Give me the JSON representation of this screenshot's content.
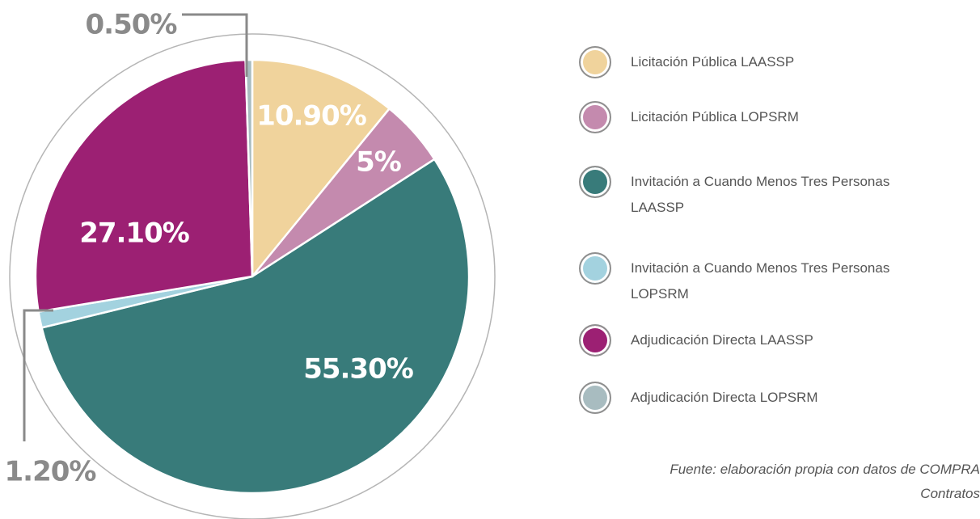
{
  "chart_data": {
    "type": "pie",
    "categories": [
      "Licitación Pública LAASSP",
      "Licitación Pública LOPSRM",
      "Invitación a Cuando Menos Tres Personas LAASSP",
      "Invitación a Cuando Menos Tres Personas LOPSRM",
      "Adjudicación Directa LAASSP",
      "Adjudicación Directa LOPSRM"
    ],
    "values": [
      10.9,
      5,
      55.3,
      1.2,
      27.1,
      0.5
    ],
    "value_labels": [
      "10.90%",
      "5%",
      "55.30%",
      "1.20%",
      "27.10%",
      "0.50%"
    ],
    "colors": [
      "#f0d39c",
      "#c48aae",
      "#387b7a",
      "#a3d2df",
      "#9c2073",
      "#a8bcc0"
    ],
    "source": [
      "Fuente: elaboración propia con datos de COMPRA",
      "Contratos"
    ]
  }
}
